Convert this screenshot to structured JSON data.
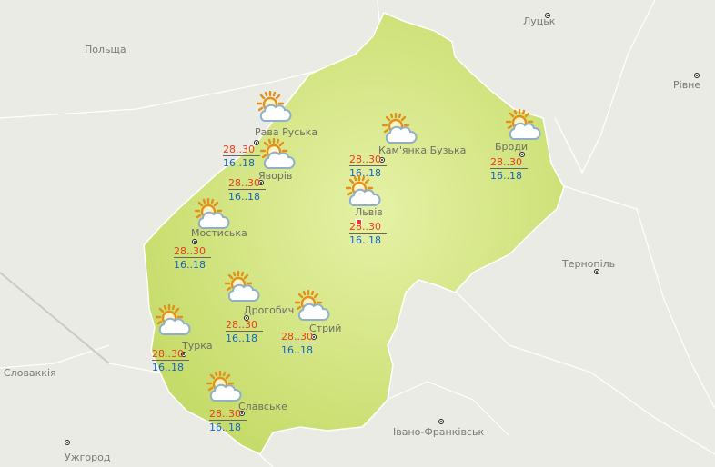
{
  "map": {
    "region_fill": "#d6e88a",
    "background": "#e9ebe4",
    "max_temp_color": "#e8401c",
    "min_temp_color": "#1565c0",
    "weather_icon": "sun-behind-cloud-icon",
    "neighbors": [
      "Польща",
      "Словаккія",
      "Луцьк",
      "Рівне",
      "Тернопіль",
      "Івано-Франківськ",
      "Ужгород"
    ],
    "cities": [
      {
        "name": "Рава Руська",
        "max": "28..30",
        "min": "16..18",
        "icon": "sun-behind-cloud-icon"
      },
      {
        "name": "Яворів",
        "max": "28..30",
        "min": "16..18",
        "icon": "sun-behind-cloud-icon"
      },
      {
        "name": "Кам'янка Бузька",
        "max": "28..30",
        "min": "16..18",
        "icon": "sun-behind-cloud-icon"
      },
      {
        "name": "Львів",
        "max": "28..30",
        "min": "16..18",
        "icon": "sun-behind-cloud-icon"
      },
      {
        "name": "Броди",
        "max": "28..30",
        "min": "16..18",
        "icon": "sun-behind-cloud-icon"
      },
      {
        "name": "Мостиська",
        "max": "28..30",
        "min": "16..18",
        "icon": "sun-behind-cloud-icon"
      },
      {
        "name": "Дрогобич",
        "max": "28..30",
        "min": "16..18",
        "icon": "sun-behind-cloud-icon"
      },
      {
        "name": "Стрий",
        "max": "28..30",
        "min": "16..18",
        "icon": "sun-behind-cloud-icon"
      },
      {
        "name": "Турка",
        "max": "28..30",
        "min": "16..18",
        "icon": "sun-behind-cloud-icon"
      },
      {
        "name": "Славське",
        "max": "28..30",
        "min": "16..18",
        "icon": "sun-behind-cloud-icon"
      }
    ]
  }
}
